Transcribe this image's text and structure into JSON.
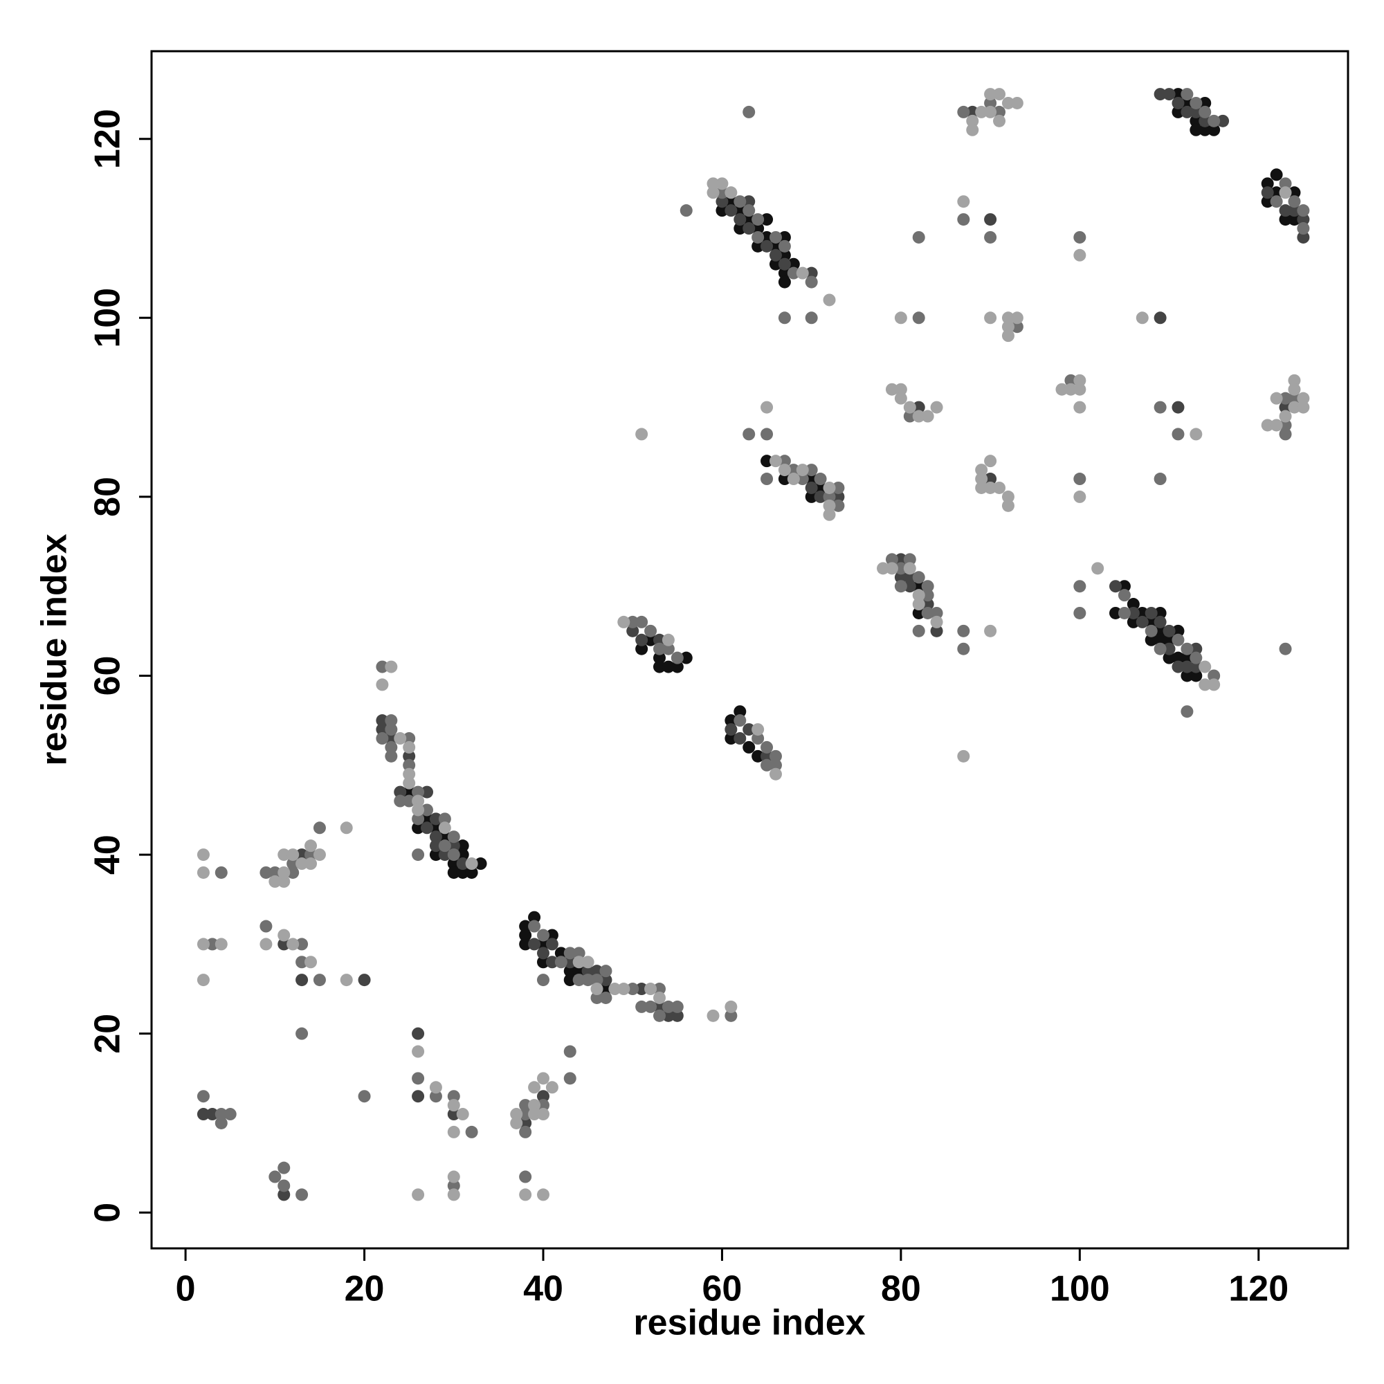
{
  "chart_data": {
    "type": "scatter",
    "xlabel": "residue index",
    "ylabel": "residue index",
    "xlim": [
      -3.8,
      130
    ],
    "ylim": [
      -4,
      129.8
    ],
    "xticks": [
      0,
      20,
      40,
      60,
      80,
      100,
      120
    ],
    "yticks": [
      0,
      20,
      40,
      60,
      80,
      100,
      120
    ],
    "series": [
      {
        "color": "#111111",
        "x": [
          25,
          27,
          26,
          28,
          29,
          31,
          28,
          31,
          30,
          33,
          30,
          31,
          32,
          38,
          38,
          38,
          39,
          40,
          40,
          41,
          42,
          43,
          43,
          44,
          47,
          51,
          52,
          53,
          53,
          54,
          55,
          56,
          61,
          61,
          62,
          63,
          64,
          60,
          61,
          62,
          62,
          63,
          64,
          64,
          65,
          65,
          66,
          66,
          67,
          67,
          67,
          67,
          68,
          65,
          67,
          70,
          70,
          71,
          82,
          82,
          104,
          105,
          106,
          106,
          107,
          108,
          108,
          109,
          109,
          109,
          110,
          110,
          111,
          111,
          112,
          112,
          113,
          111,
          111,
          112,
          113,
          113,
          114,
          114,
          115,
          121,
          121,
          122,
          122,
          124,
          124,
          123
        ],
        "values": [
          47,
          44,
          43,
          43,
          42,
          41,
          40,
          40,
          39,
          39,
          38,
          38,
          38,
          32,
          31,
          30,
          33,
          30,
          28,
          31,
          29,
          27,
          26,
          27,
          25,
          63,
          64,
          62,
          61,
          61,
          61,
          62,
          55,
          53,
          56,
          52,
          51,
          112,
          113,
          112,
          110,
          111,
          110,
          108,
          111,
          109,
          108,
          106,
          109,
          107,
          105,
          104,
          106,
          84,
          82,
          82,
          80,
          81,
          70,
          67,
          67,
          70,
          68,
          66,
          67,
          66,
          64,
          67,
          65,
          64,
          64,
          62,
          65,
          62,
          62,
          60,
          60,
          125,
          123,
          124,
          122,
          121,
          124,
          121,
          121,
          115,
          113,
          116,
          114,
          114,
          111,
          111
        ]
      },
      {
        "color": "#444444",
        "x": [
          2,
          3,
          13,
          11,
          13,
          20,
          11,
          22,
          22,
          23,
          25,
          24,
          27,
          28,
          27,
          28,
          28,
          30,
          29,
          31,
          26,
          26,
          30,
          38,
          40,
          39,
          40,
          41,
          41,
          43,
          45,
          46,
          47,
          51,
          53,
          54,
          55,
          50,
          51,
          53,
          61,
          62,
          63,
          65,
          60,
          61,
          62,
          63,
          63,
          65,
          66,
          67,
          70,
          70,
          71,
          73,
          80,
          80,
          81,
          81,
          83,
          84,
          82,
          88,
          90,
          90,
          104,
          106,
          107,
          108,
          109,
          110,
          110,
          111,
          112,
          113,
          113,
          109,
          111,
          109,
          110,
          111,
          112,
          113,
          114,
          116,
          121,
          123,
          124,
          125,
          125,
          123
        ],
        "values": [
          11,
          11,
          40,
          30,
          26,
          26,
          2,
          55,
          54,
          53,
          51,
          47,
          47,
          44,
          43,
          42,
          41,
          41,
          40,
          39,
          20,
          13,
          11,
          10,
          13,
          30,
          29,
          30,
          28,
          28,
          27,
          27,
          26,
          25,
          23,
          22,
          22,
          65,
          64,
          64,
          54,
          53,
          54,
          51,
          113,
          112,
          111,
          113,
          110,
          108,
          107,
          106,
          105,
          81,
          80,
          80,
          73,
          71,
          71,
          70,
          68,
          65,
          90,
          123,
          111,
          82,
          70,
          67,
          66,
          67,
          66,
          65,
          63,
          61,
          61,
          63,
          61,
          100,
          90,
          125,
          125,
          124,
          123,
          123,
          122,
          122,
          114,
          112,
          112,
          111,
          109,
          90
        ]
      },
      {
        "color": "#707070",
        "x": [
          2,
          4,
          4,
          5,
          4,
          3,
          9,
          10,
          12,
          12,
          14,
          15,
          9,
          13,
          13,
          15,
          13,
          20,
          10,
          11,
          11,
          13,
          22,
          23,
          23,
          22,
          25,
          23,
          23,
          25,
          26,
          24,
          25,
          27,
          26,
          29,
          30,
          29,
          30,
          26,
          26,
          28,
          30,
          32,
          30,
          38,
          38,
          38,
          40,
          43,
          43,
          38,
          39,
          40,
          42,
          43,
          44,
          44,
          45,
          46,
          47,
          47,
          46,
          50,
          51,
          52,
          53,
          53,
          54,
          55,
          40,
          61,
          50,
          51,
          52,
          53,
          54,
          55,
          62,
          64,
          65,
          65,
          66,
          66,
          56,
          60,
          62,
          63,
          64,
          64,
          66,
          67,
          68,
          70,
          67,
          70,
          63,
          63,
          65,
          65,
          67,
          68,
          69,
          70,
          71,
          72,
          73,
          73,
          79,
          80,
          80,
          81,
          82,
          82,
          83,
          83,
          83,
          84,
          87,
          87,
          81,
          82,
          82,
          87,
          90,
          91,
          87,
          90,
          93,
          99,
          100,
          100,
          100,
          100,
          105,
          105,
          108,
          109,
          111,
          112,
          113,
          115,
          112,
          109,
          111,
          109,
          112,
          113,
          114,
          115,
          122,
          123,
          124,
          125,
          125,
          123,
          123,
          123,
          124,
          123
        ],
        "values": [
          13,
          11,
          10,
          11,
          38,
          30,
          38,
          38,
          39,
          38,
          40,
          43,
          32,
          30,
          28,
          26,
          20,
          13,
          4,
          5,
          3,
          2,
          61,
          55,
          54,
          53,
          53,
          52,
          51,
          50,
          47,
          46,
          46,
          45,
          44,
          44,
          42,
          41,
          40,
          40,
          15,
          13,
          13,
          9,
          3,
          12,
          11,
          9,
          12,
          18,
          15,
          4,
          32,
          31,
          28,
          29,
          29,
          26,
          26,
          26,
          27,
          24,
          24,
          25,
          23,
          23,
          25,
          22,
          23,
          23,
          26,
          22,
          66,
          66,
          65,
          63,
          63,
          62,
          55,
          53,
          52,
          50,
          51,
          50,
          112,
          114,
          113,
          112,
          111,
          109,
          109,
          108,
          105,
          104,
          100,
          100,
          123,
          87,
          87,
          82,
          84,
          83,
          82,
          83,
          82,
          80,
          81,
          79,
          73,
          72,
          70,
          73,
          71,
          65,
          70,
          69,
          67,
          67,
          65,
          63,
          89,
          100,
          109,
          123,
          124,
          123,
          111,
          109,
          99,
          93,
          109,
          82,
          70,
          67,
          69,
          67,
          65,
          63,
          64,
          63,
          62,
          60,
          56,
          90,
          87,
          82,
          125,
          124,
          123,
          122,
          113,
          115,
          113,
          112,
          110,
          91,
          88,
          87,
          91,
          63
        ]
      },
      {
        "color": "#a3a3a3",
        "x": [
          2,
          2,
          2,
          4,
          2,
          10,
          11,
          11,
          11,
          12,
          13,
          14,
          14,
          15,
          18,
          9,
          11,
          12,
          14,
          18,
          23,
          22,
          24,
          25,
          25,
          25,
          26,
          26,
          29,
          32,
          26,
          28,
          30,
          31,
          30,
          26,
          30,
          30,
          37,
          37,
          39,
          39,
          39,
          40,
          40,
          41,
          38,
          40,
          44,
          45,
          46,
          48,
          49,
          52,
          53,
          59,
          61,
          49,
          54,
          64,
          66,
          59,
          59,
          60,
          61,
          69,
          72,
          51,
          65,
          66,
          67,
          68,
          69,
          72,
          72,
          72,
          78,
          79,
          81,
          82,
          82,
          84,
          90,
          87,
          79,
          80,
          80,
          81,
          82,
          83,
          84,
          80,
          88,
          88,
          89,
          90,
          90,
          91,
          91,
          92,
          93,
          87,
          89,
          89,
          89,
          90,
          90,
          91,
          92,
          92,
          90,
          92,
          92,
          92,
          93,
          98,
          99,
          100,
          100,
          100,
          100,
          100,
          102,
          114,
          114,
          115,
          107,
          113,
          123,
          121,
          122,
          122,
          123,
          124,
          124,
          124,
          125,
          125
        ],
        "values": [
          40,
          38,
          30,
          30,
          26,
          37,
          37,
          38,
          40,
          40,
          39,
          39,
          41,
          40,
          43,
          30,
          31,
          30,
          28,
          26,
          61,
          59,
          53,
          52,
          49,
          48,
          46,
          45,
          43,
          39,
          18,
          14,
          12,
          11,
          9,
          2,
          4,
          2,
          11,
          10,
          14,
          12,
          11,
          15,
          11,
          14,
          2,
          2,
          28,
          28,
          25,
          25,
          25,
          25,
          24,
          22,
          23,
          66,
          64,
          54,
          49,
          115,
          114,
          115,
          114,
          105,
          102,
          87,
          90,
          84,
          83,
          82,
          83,
          81,
          79,
          78,
          72,
          72,
          72,
          69,
          68,
          66,
          65,
          51,
          92,
          92,
          91,
          90,
          89,
          89,
          90,
          100,
          122,
          121,
          123,
          125,
          123,
          125,
          122,
          124,
          124,
          113,
          83,
          82,
          81,
          84,
          81,
          81,
          80,
          79,
          100,
          100,
          99,
          98,
          100,
          92,
          92,
          93,
          92,
          90,
          107,
          80,
          72,
          61,
          59,
          59,
          100,
          87,
          114,
          88,
          91,
          88,
          89,
          93,
          92,
          90,
          91,
          90
        ]
      }
    ]
  }
}
